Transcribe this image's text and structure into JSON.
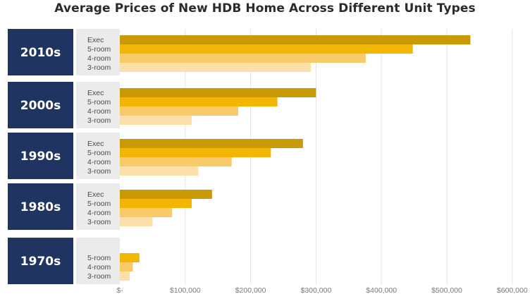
{
  "chart_data": {
    "type": "bar",
    "orientation": "horizontal",
    "title": "Average Prices of New HDB Home Across Different Unit Types",
    "xlabel": "",
    "ylabel": "",
    "xlim": [
      0,
      600000
    ],
    "x_ticks": [
      0,
      100000,
      200000,
      300000,
      400000,
      500000,
      600000
    ],
    "x_tick_labels": [
      "$-",
      "$100,000",
      "$200,000",
      "$300,000",
      "$400,000",
      "$500,000",
      "$600,000"
    ],
    "grid": true,
    "colors": {
      "Exec": "#c99a06",
      "5-room": "#f2b705",
      "4-room": "#f8cb6a",
      "3-room": "#fde0a9",
      "decade_box": "#1f3461",
      "label_box": "#ebebeb",
      "grid": "#e3e3e3"
    },
    "groups": [
      {
        "decade": "2010s",
        "units": [
          {
            "unit": "Exec",
            "value": 536000
          },
          {
            "unit": "5-room",
            "value": 448000
          },
          {
            "unit": "4-room",
            "value": 376000
          },
          {
            "unit": "3-room",
            "value": 292000
          }
        ]
      },
      {
        "decade": "2000s",
        "units": [
          {
            "unit": "Exec",
            "value": 300000
          },
          {
            "unit": "5-room",
            "value": 241000
          },
          {
            "unit": "4-room",
            "value": 181000
          },
          {
            "unit": "3-room",
            "value": 110000
          }
        ]
      },
      {
        "decade": "1990s",
        "units": [
          {
            "unit": "Exec",
            "value": 280000
          },
          {
            "unit": "5-room",
            "value": 231000
          },
          {
            "unit": "4-room",
            "value": 171000
          },
          {
            "unit": "3-room",
            "value": 120000
          }
        ]
      },
      {
        "decade": "1980s",
        "units": [
          {
            "unit": "Exec",
            "value": 141000
          },
          {
            "unit": "5-room",
            "value": 110000
          },
          {
            "unit": "4-room",
            "value": 80000
          },
          {
            "unit": "3-room",
            "value": 50000
          }
        ]
      },
      {
        "decade": "1970s",
        "units": [
          {
            "unit": "5-room",
            "value": 30000
          },
          {
            "unit": "4-room",
            "value": 20000
          },
          {
            "unit": "3-room",
            "value": 15000
          }
        ]
      }
    ]
  }
}
